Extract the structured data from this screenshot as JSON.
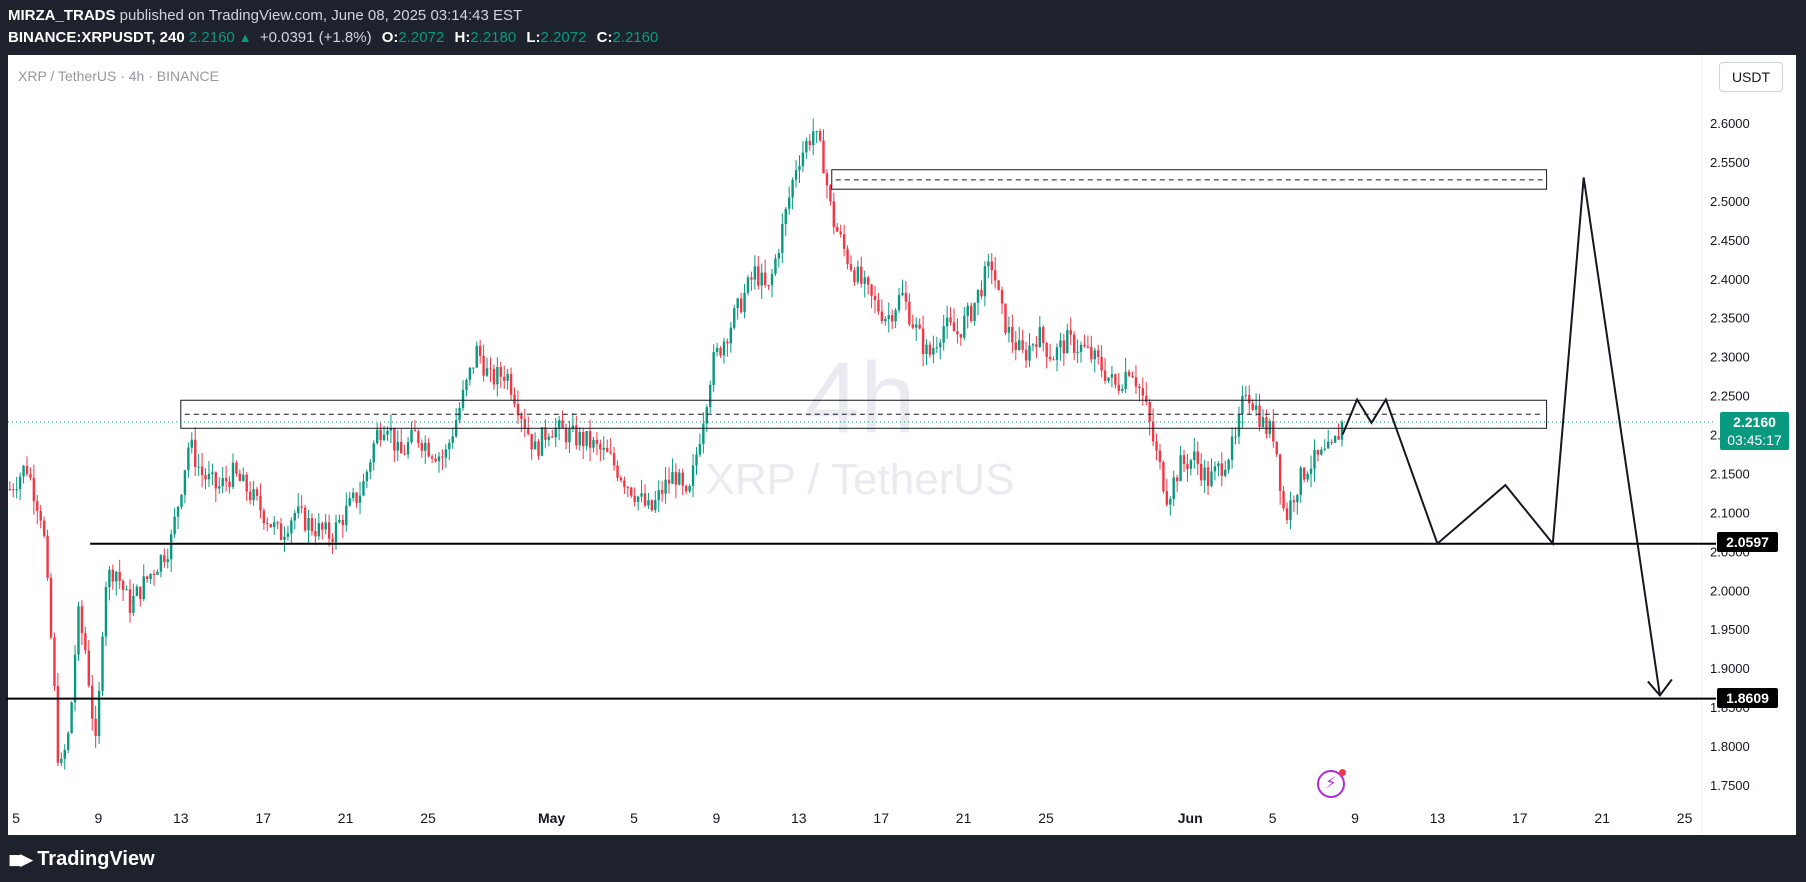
{
  "header": {
    "author": "MIRZA_TRADS",
    "published": "published on TradingView.com, June 08, 2025 03:14:43 EST",
    "symbol": "BINANCE:XRPUSDT, 240",
    "last": "2.2160",
    "arrow_icon": "triangle-up-icon",
    "change": "+0.0391 (+1.8%)",
    "o_label": "O:",
    "o": "2.2072",
    "h_label": "H:",
    "h": "2.2180",
    "l_label": "L:",
    "l": "2.2072",
    "c_label": "C:",
    "c": "2.2160"
  },
  "footer": {
    "brand": "TradingView",
    "logo_icon": "tradingview-logo-icon"
  },
  "price_axis": {
    "currency": "USDT",
    "current_price": "2.2160",
    "countdown": "03:45:17",
    "level1": "2.0597",
    "level2": "1.8609"
  },
  "alert_icon": "lightning-icon",
  "colors": {
    "background": "#ffffff",
    "up": "#089981",
    "down": "#f23645",
    "frame": "#1e222d",
    "alert": "#b22ad8"
  },
  "chart_data": {
    "type": "candlestick",
    "title": "XRP / TetherUS · 4h · BINANCE",
    "watermark_interval": "4h",
    "watermark_name": "XRP / TetherUS",
    "y_ticks": [
      "2.6000",
      "2.5500",
      "2.5000",
      "2.4500",
      "2.4000",
      "2.3500",
      "2.3000",
      "2.2500",
      "2.2000",
      "2.1500",
      "2.1000",
      "2.0500",
      "2.0000",
      "1.9500",
      "1.9000",
      "1.8500",
      "1.8000",
      "1.7500"
    ],
    "ylim": [
      1.73,
      2.66
    ],
    "x_ticks": [
      {
        "label": "5",
        "day": 5
      },
      {
        "label": "9",
        "day": 9
      },
      {
        "label": "13",
        "day": 13
      },
      {
        "label": "17",
        "day": 17
      },
      {
        "label": "21",
        "day": 21
      },
      {
        "label": "25",
        "day": 25
      },
      {
        "label": "May",
        "day": 31
      },
      {
        "label": "5",
        "day": 35
      },
      {
        "label": "9",
        "day": 39
      },
      {
        "label": "13",
        "day": 43
      },
      {
        "label": "17",
        "day": 47
      },
      {
        "label": "21",
        "day": 51
      },
      {
        "label": "25",
        "day": 55
      },
      {
        "label": "Jun",
        "day": 62
      },
      {
        "label": "5",
        "day": 66
      },
      {
        "label": "9",
        "day": 70
      },
      {
        "label": "13",
        "day": 74
      },
      {
        "label": "17",
        "day": 78
      },
      {
        "label": "21",
        "day": 82
      },
      {
        "label": "25",
        "day": 86
      }
    ],
    "close_path": [
      [
        4.7,
        2.13
      ],
      [
        5.5,
        2.16
      ],
      [
        6.3,
        2.09
      ],
      [
        6.8,
        1.9
      ],
      [
        7.1,
        1.76
      ],
      [
        7.6,
        1.82
      ],
      [
        8.0,
        1.97
      ],
      [
        8.4,
        1.92
      ],
      [
        8.9,
        1.79
      ],
      [
        9.3,
        2.01
      ],
      [
        9.8,
        2.03
      ],
      [
        10.5,
        1.98
      ],
      [
        11.5,
        2.02
      ],
      [
        12.5,
        2.06
      ],
      [
        13.0,
        2.13
      ],
      [
        13.4,
        2.19
      ],
      [
        14.0,
        2.15
      ],
      [
        14.8,
        2.13
      ],
      [
        15.5,
        2.15
      ],
      [
        16.2,
        2.13
      ],
      [
        17.0,
        2.1
      ],
      [
        17.8,
        2.07
      ],
      [
        18.5,
        2.1
      ],
      [
        19.5,
        2.08
      ],
      [
        20.3,
        2.07
      ],
      [
        21.0,
        2.1
      ],
      [
        21.8,
        2.13
      ],
      [
        22.5,
        2.2
      ],
      [
        23.0,
        2.22
      ],
      [
        23.6,
        2.17
      ],
      [
        24.4,
        2.2
      ],
      [
        25.2,
        2.18
      ],
      [
        25.8,
        2.17
      ],
      [
        26.6,
        2.24
      ],
      [
        27.4,
        2.31
      ],
      [
        28.0,
        2.27
      ],
      [
        28.8,
        2.28
      ],
      [
        29.5,
        2.23
      ],
      [
        30.2,
        2.18
      ],
      [
        30.9,
        2.21
      ],
      [
        31.8,
        2.2
      ],
      [
        32.8,
        2.19
      ],
      [
        33.8,
        2.17
      ],
      [
        34.6,
        2.14
      ],
      [
        35.2,
        2.12
      ],
      [
        35.8,
        2.1
      ],
      [
        36.4,
        2.13
      ],
      [
        37.0,
        2.15
      ],
      [
        37.6,
        2.11
      ],
      [
        38.2,
        2.2
      ],
      [
        38.8,
        2.29
      ],
      [
        39.5,
        2.33
      ],
      [
        40.2,
        2.37
      ],
      [
        40.9,
        2.41
      ],
      [
        41.5,
        2.38
      ],
      [
        42.0,
        2.44
      ],
      [
        42.5,
        2.5
      ],
      [
        42.9,
        2.55
      ],
      [
        43.3,
        2.57
      ],
      [
        43.7,
        2.59
      ],
      [
        44.2,
        2.55
      ],
      [
        44.6,
        2.48
      ],
      [
        45.3,
        2.43
      ],
      [
        45.9,
        2.4
      ],
      [
        46.6,
        2.37
      ],
      [
        47.3,
        2.35
      ],
      [
        48.0,
        2.38
      ],
      [
        48.6,
        2.34
      ],
      [
        49.3,
        2.3
      ],
      [
        50.0,
        2.34
      ],
      [
        50.7,
        2.33
      ],
      [
        51.4,
        2.36
      ],
      [
        52.0,
        2.4
      ],
      [
        52.4,
        2.42
      ],
      [
        52.8,
        2.36
      ],
      [
        53.2,
        2.33
      ],
      [
        53.9,
        2.3
      ],
      [
        54.6,
        2.33
      ],
      [
        55.3,
        2.3
      ],
      [
        56.0,
        2.32
      ],
      [
        56.8,
        2.31
      ],
      [
        57.6,
        2.29
      ],
      [
        58.4,
        2.26
      ],
      [
        59.1,
        2.29
      ],
      [
        59.8,
        2.24
      ],
      [
        60.3,
        2.18
      ],
      [
        60.9,
        2.12
      ],
      [
        61.5,
        2.16
      ],
      [
        62.2,
        2.17
      ],
      [
        62.9,
        2.14
      ],
      [
        63.5,
        2.16
      ],
      [
        64.2,
        2.19
      ],
      [
        64.7,
        2.26
      ],
      [
        65.1,
        2.24
      ],
      [
        65.6,
        2.21
      ],
      [
        66.1,
        2.2
      ],
      [
        66.6,
        2.09
      ],
      [
        67.1,
        2.13
      ],
      [
        67.7,
        2.16
      ],
      [
        68.3,
        2.17
      ],
      [
        68.9,
        2.18
      ],
      [
        69.4,
        2.216
      ]
    ],
    "annotations": {
      "supply_zone": {
        "x0": 44.6,
        "x1": 79.3,
        "y_top": 2.54,
        "y_bottom": 2.515,
        "y_mid": 2.527
      },
      "mid_zone": {
        "x0": 13.0,
        "x1": 79.3,
        "y_top": 2.244,
        "y_bottom": 2.208,
        "y_mid": 2.226
      },
      "support_line": {
        "x0": 8.6,
        "y": 2.0597
      },
      "target_line": {
        "x0": 4.5,
        "y": 1.8609
      },
      "projection_path": [
        [
          69.4,
          2.2
        ],
        [
          70.1,
          2.245
        ],
        [
          70.8,
          2.215
        ],
        [
          71.5,
          2.245
        ],
        [
          74.0,
          2.06
        ],
        [
          77.3,
          2.135
        ],
        [
          79.6,
          2.06
        ],
        [
          81.1,
          2.53
        ],
        [
          84.8,
          1.865
        ]
      ]
    }
  }
}
